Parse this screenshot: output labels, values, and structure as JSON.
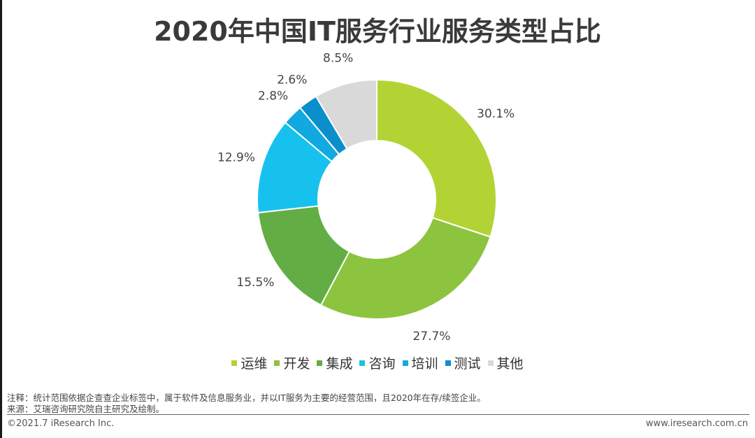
{
  "chart_data": {
    "type": "pie",
    "style": "donut",
    "title": "2020年中国IT服务行业服务类型占比",
    "categories": [
      "运维",
      "开发",
      "集成",
      "咨询",
      "培训",
      "测试",
      "其他"
    ],
    "values": [
      30.1,
      27.7,
      15.5,
      12.9,
      2.8,
      2.6,
      8.5
    ],
    "labels": [
      "30.1%",
      "27.7%",
      "15.5%",
      "12.9%",
      "2.8%",
      "2.6%",
      "8.5%"
    ],
    "colors": [
      "#B3D334",
      "#8CC43F",
      "#62AE44",
      "#17C1EE",
      "#12A9E2",
      "#0B8FCB",
      "#D9D9D9"
    ],
    "legend_position": "bottom"
  },
  "notes": {
    "line1": "注释：统计范围依据企查查企业标签中，属于软件及信息服务业，并以IT服务为主要的经营范围，且2020年在存/续签企业。",
    "line2": "来源：艾瑞咨询研究院自主研究及绘制。"
  },
  "footer": {
    "copyright": "©2021.7 iResearch Inc.",
    "website": "www.iresearch.com.cn"
  }
}
